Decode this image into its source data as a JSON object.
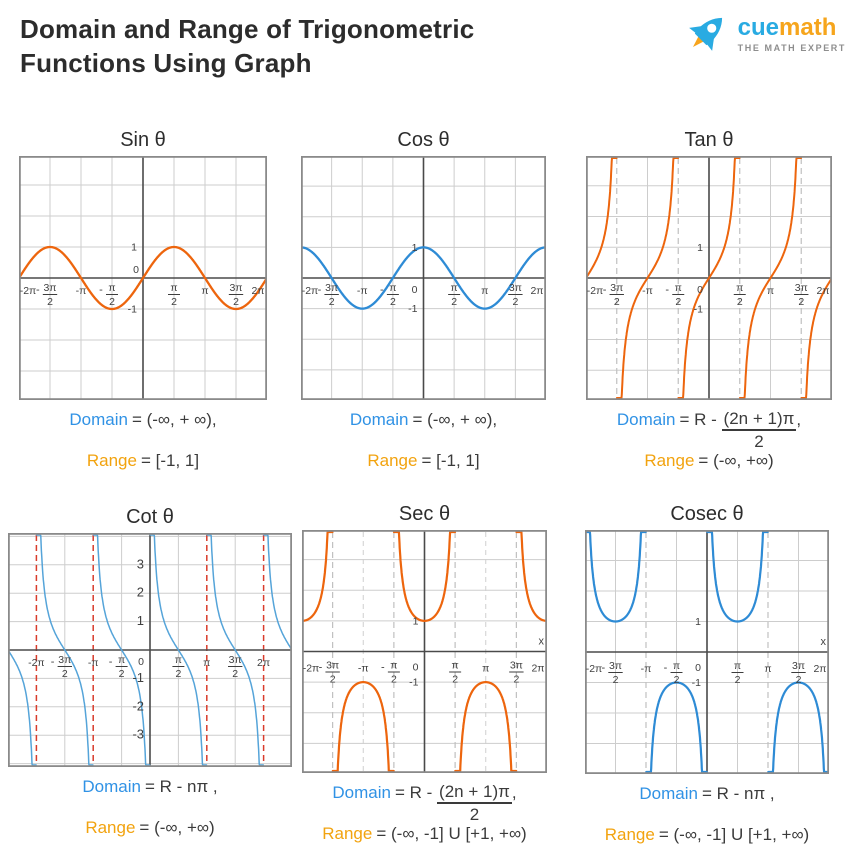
{
  "header": {
    "title": "Domain and Range of Trigonometric Functions Using Graph",
    "logo": {
      "brand_cue": "cue",
      "brand_math": "math",
      "tagline": "THE MATH EXPERT"
    }
  },
  "colors": {
    "curve_orange": "#ED650D",
    "curve_blue": "#2E8BD5",
    "cot_blue": "#55A4D9",
    "asymptote_red": "#D93B2B",
    "asymptote_gray": "#C0C0C0",
    "domain_label": "#3092E5",
    "range_label": "#F2A30F"
  },
  "chart_data": {
    "note": "six line charts of trig functions, see charts[]"
  },
  "charts": [
    {
      "id": "sin",
      "title": "Sin θ",
      "type": "line",
      "function": "sin",
      "color": "#ED650D",
      "x_range_pi": [
        -2,
        2
      ],
      "vgrid": "solid",
      "y_ticks": [
        1,
        -1
      ],
      "origin": {
        "label": "0",
        "pos": "above"
      },
      "x_ticks": [
        {
          "v": -2,
          "l": "-2π"
        },
        {
          "v": -1.5,
          "l": "-3π/2"
        },
        {
          "v": -1,
          "l": "-π"
        },
        {
          "v": -0.5,
          "l": "-π/2"
        },
        {
          "v": 0.5,
          "l": "π/2"
        },
        {
          "v": 1,
          "l": "π"
        },
        {
          "v": 1.5,
          "l": "3π/2"
        },
        {
          "v": 2,
          "l": "2π"
        }
      ],
      "domain": {
        "label": "Domain",
        "parts": [
          {
            "t": "= (-∞, + ∞),"
          }
        ]
      },
      "range": {
        "label": "Range",
        "parts": [
          {
            "t": "= [-1, 1]"
          }
        ]
      }
    },
    {
      "id": "cos",
      "title": "Cos θ",
      "type": "line",
      "function": "cos",
      "color": "#2E8BD5",
      "x_range_pi": [
        -2,
        2
      ],
      "vgrid": "solid",
      "y_ticks": [
        1,
        -1
      ],
      "origin": {
        "label": "0",
        "pos": "below"
      },
      "x_ticks": [
        {
          "v": -2,
          "l": "-2π"
        },
        {
          "v": -1.5,
          "l": "-3π/2"
        },
        {
          "v": -1,
          "l": "-π"
        },
        {
          "v": -0.5,
          "l": "-π/2"
        },
        {
          "v": 0.5,
          "l": "π/2"
        },
        {
          "v": 1,
          "l": "π"
        },
        {
          "v": 1.5,
          "l": "3π/2"
        },
        {
          "v": 2,
          "l": "2π"
        }
      ],
      "domain": {
        "label": "Domain",
        "parts": [
          {
            "t": "= (-∞, + ∞),"
          }
        ]
      },
      "range": {
        "label": "Range",
        "parts": [
          {
            "t": "= [-1, 1]"
          }
        ]
      }
    },
    {
      "id": "tan",
      "title": "Tan θ",
      "type": "line",
      "function": "tan",
      "color": "#ED650D",
      "x_range_pi": [
        -2,
        2
      ],
      "vgrid": "solid",
      "asymptotes": {
        "color": "gray",
        "at_pi": [
          -1.5,
          -0.5,
          0.5,
          1.5
        ]
      },
      "y_ticks": [
        1,
        -1
      ],
      "origin": {
        "label": "0",
        "pos": "below"
      },
      "x_ticks": [
        {
          "v": -2,
          "l": "-2π"
        },
        {
          "v": -1.5,
          "l": "-3π/2"
        },
        {
          "v": -1,
          "l": "-π"
        },
        {
          "v": -0.5,
          "l": "-π/2"
        },
        {
          "v": 0.5,
          "l": "π/2"
        },
        {
          "v": 1,
          "l": "π"
        },
        {
          "v": 1.5,
          "l": "3π/2"
        },
        {
          "v": 2,
          "l": "2π"
        }
      ],
      "domain": {
        "label": "Domain",
        "parts": [
          {
            "t": "= R - "
          },
          {
            "frac": {
              "num": "(2n + 1)π",
              "den": "2"
            }
          },
          {
            "t": ","
          }
        ]
      },
      "range": {
        "label": "Range",
        "parts": [
          {
            "t": "= (-∞, +∞)"
          }
        ]
      }
    },
    {
      "id": "cot",
      "title": "Cot θ",
      "type": "line",
      "function": "cot",
      "color": "#55A4D9",
      "x_range_pi": [
        -2.5,
        2.5
      ],
      "vgrid": "solid",
      "asymptotes": {
        "color": "red",
        "at_pi": [
          -2,
          -1,
          1,
          2
        ]
      },
      "y_ticks": [
        3,
        2,
        1,
        -1,
        -2,
        -3
      ],
      "origin": {
        "label": "0",
        "pos": "below"
      },
      "x_ticks": [
        {
          "v": -2,
          "l": "-2π"
        },
        {
          "v": -1.5,
          "l": "-3π/2"
        },
        {
          "v": -1,
          "l": "-π"
        },
        {
          "v": -0.5,
          "l": "-π/2"
        },
        {
          "v": 0.5,
          "l": "π/2"
        },
        {
          "v": 1,
          "l": "π"
        },
        {
          "v": 1.5,
          "l": "3π/2"
        },
        {
          "v": 2,
          "l": "2π"
        }
      ],
      "domain": {
        "label": "Domain",
        "parts": [
          {
            "t": "= R - nπ ,"
          }
        ]
      },
      "range": {
        "label": "Range",
        "parts": [
          {
            "t": "= (-∞, +∞)"
          }
        ]
      }
    },
    {
      "id": "sec",
      "title": "Sec θ",
      "type": "line",
      "function": "sec",
      "color": "#ED650D",
      "x_range_pi": [
        -2,
        2
      ],
      "vgrid": "dashed",
      "asymptotes": {
        "color": "gray",
        "at_pi": [
          -1.5,
          -0.5,
          0.5,
          1.5
        ]
      },
      "y_ticks": [
        1,
        -1
      ],
      "origin": {
        "label": "0",
        "pos": "below"
      },
      "axis_label_x": "x",
      "x_ticks": [
        {
          "v": -2,
          "l": "-2π"
        },
        {
          "v": -1.5,
          "l": "-3π/2"
        },
        {
          "v": -1,
          "l": "-π"
        },
        {
          "v": -0.5,
          "l": "-π/2"
        },
        {
          "v": 0.5,
          "l": "π/2"
        },
        {
          "v": 1,
          "l": "π"
        },
        {
          "v": 1.5,
          "l": "3π/2"
        },
        {
          "v": 2,
          "l": "2π"
        }
      ],
      "domain": {
        "label": "Domain",
        "parts": [
          {
            "t": "= R - "
          },
          {
            "frac": {
              "num": "(2n + 1)π",
              "den": "2"
            }
          },
          {
            "t": ","
          }
        ]
      },
      "range": {
        "label": "Range",
        "parts": [
          {
            "t": "= (-∞, -1] U [+1, +∞)"
          }
        ]
      }
    },
    {
      "id": "cosec",
      "title": "Cosec θ",
      "type": "line",
      "function": "cosec",
      "color": "#2E8BD5",
      "x_range_pi": [
        -2,
        2
      ],
      "vgrid": "solid",
      "asymptotes": {
        "color": "gray",
        "at_pi": [
          -1,
          1
        ]
      },
      "y_ticks": [
        1,
        -1
      ],
      "origin": {
        "label": "0",
        "pos": "below"
      },
      "axis_label_x": "x",
      "x_ticks": [
        {
          "v": -2,
          "l": "-2π"
        },
        {
          "v": -1.5,
          "l": "-3π/2"
        },
        {
          "v": -1,
          "l": "-π"
        },
        {
          "v": -0.5,
          "l": "-π/2"
        },
        {
          "v": 0.5,
          "l": "π/2"
        },
        {
          "v": 1,
          "l": "π"
        },
        {
          "v": 1.5,
          "l": "3π/2"
        },
        {
          "v": 2,
          "l": "2π"
        }
      ],
      "domain": {
        "label": "Domain",
        "parts": [
          {
            "t": "= R - nπ ,"
          }
        ]
      },
      "range": {
        "label": "Range",
        "parts": [
          {
            "t": "= (-∞, -1] U [+1, +∞)"
          }
        ]
      }
    }
  ]
}
